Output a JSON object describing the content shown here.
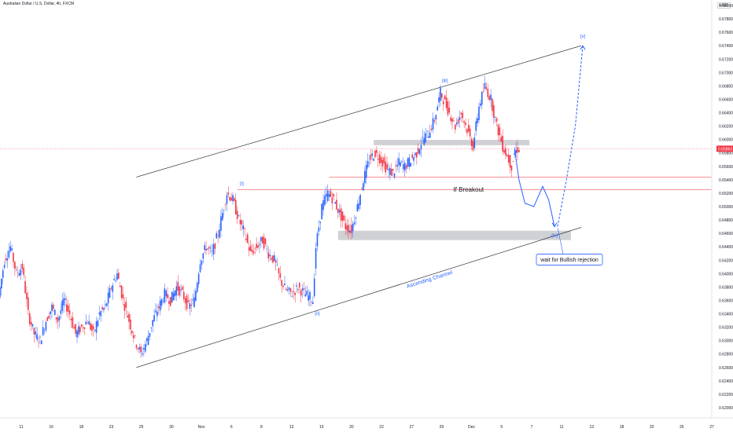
{
  "header": {
    "title": "Australian Dollar / U.S. Dollar, 4h, FXCM",
    "currency": "USD"
  },
  "chart_data": {
    "type": "candlestick",
    "title": "Australian Dollar / U.S. Dollar, 4h, FXCM",
    "y_axis": {
      "unit": "USD",
      "range": [
        0.62,
        0.68
      ],
      "ticks": [
        "0.68000",
        "0.67800",
        "0.67600",
        "0.67400",
        "0.67200",
        "0.67000",
        "0.66800",
        "0.66600",
        "0.66400",
        "0.66200",
        "0.66000",
        "0.65800",
        "0.65600",
        "0.65400",
        "0.65200",
        "0.65000",
        "0.64800",
        "0.64600",
        "0.64400",
        "0.64200",
        "0.64000",
        "0.63800",
        "0.63600",
        "0.63400",
        "0.63200",
        "0.63000",
        "0.62800",
        "0.62600",
        "0.62400",
        "0.62200",
        "0.62000"
      ],
      "current_price": "0.65863",
      "current_price_value": 0.65863
    },
    "x_axis": {
      "ticks": [
        "11",
        "16",
        "18",
        "23",
        "25",
        "30",
        "Nov",
        "6",
        "8",
        "13",
        "15",
        "20",
        "22",
        "27",
        "29",
        "Dec",
        "5",
        "7",
        "11",
        "13",
        "18",
        "20",
        "25",
        "27"
      ]
    },
    "price_path": [
      {
        "i": 0,
        "v": 0.6365
      },
      {
        "i": 4,
        "v": 0.642
      },
      {
        "i": 8,
        "v": 0.644
      },
      {
        "i": 12,
        "v": 0.64
      },
      {
        "i": 16,
        "v": 0.641
      },
      {
        "i": 20,
        "v": 0.634
      },
      {
        "i": 24,
        "v": 0.631
      },
      {
        "i": 28,
        "v": 0.63
      },
      {
        "i": 32,
        "v": 0.633
      },
      {
        "i": 36,
        "v": 0.635
      },
      {
        "i": 40,
        "v": 0.633
      },
      {
        "i": 44,
        "v": 0.636
      },
      {
        "i": 48,
        "v": 0.634
      },
      {
        "i": 52,
        "v": 0.631
      },
      {
        "i": 56,
        "v": 0.632
      },
      {
        "i": 60,
        "v": 0.633
      },
      {
        "i": 64,
        "v": 0.631
      },
      {
        "i": 68,
        "v": 0.634
      },
      {
        "i": 72,
        "v": 0.635
      },
      {
        "i": 76,
        "v": 0.638
      },
      {
        "i": 80,
        "v": 0.64
      },
      {
        "i": 84,
        "v": 0.636
      },
      {
        "i": 88,
        "v": 0.633
      },
      {
        "i": 92,
        "v": 0.63
      },
      {
        "i": 96,
        "v": 0.628
      },
      {
        "i": 100,
        "v": 0.63
      },
      {
        "i": 104,
        "v": 0.633
      },
      {
        "i": 108,
        "v": 0.635
      },
      {
        "i": 112,
        "v": 0.637
      },
      {
        "i": 116,
        "v": 0.636
      },
      {
        "i": 120,
        "v": 0.638
      },
      {
        "i": 124,
        "v": 0.637
      },
      {
        "i": 128,
        "v": 0.635
      },
      {
        "i": 132,
        "v": 0.636
      },
      {
        "i": 136,
        "v": 0.642
      },
      {
        "i": 140,
        "v": 0.644
      },
      {
        "i": 144,
        "v": 0.643
      },
      {
        "i": 148,
        "v": 0.646
      },
      {
        "i": 152,
        "v": 0.65
      },
      {
        "i": 154,
        "v": 0.652
      },
      {
        "i": 158,
        "v": 0.651
      },
      {
        "i": 162,
        "v": 0.648
      },
      {
        "i": 166,
        "v": 0.646
      },
      {
        "i": 170,
        "v": 0.643
      },
      {
        "i": 174,
        "v": 0.644
      },
      {
        "i": 178,
        "v": 0.645
      },
      {
        "i": 182,
        "v": 0.643
      },
      {
        "i": 186,
        "v": 0.642
      },
      {
        "i": 190,
        "v": 0.639
      },
      {
        "i": 194,
        "v": 0.6375
      },
      {
        "i": 198,
        "v": 0.637
      },
      {
        "i": 202,
        "v": 0.638
      },
      {
        "i": 206,
        "v": 0.637
      },
      {
        "i": 210,
        "v": 0.6365
      },
      {
        "i": 212,
        "v": 0.636
      },
      {
        "i": 214,
        "v": 0.644
      },
      {
        "i": 218,
        "v": 0.65
      },
      {
        "i": 222,
        "v": 0.652
      },
      {
        "i": 226,
        "v": 0.651
      },
      {
        "i": 230,
        "v": 0.649
      },
      {
        "i": 234,
        "v": 0.647
      },
      {
        "i": 238,
        "v": 0.6465
      },
      {
        "i": 242,
        "v": 0.65
      },
      {
        "i": 246,
        "v": 0.654
      },
      {
        "i": 250,
        "v": 0.657
      },
      {
        "i": 254,
        "v": 0.658
      },
      {
        "i": 258,
        "v": 0.657
      },
      {
        "i": 262,
        "v": 0.6555
      },
      {
        "i": 266,
        "v": 0.655
      },
      {
        "i": 270,
        "v": 0.6565
      },
      {
        "i": 274,
        "v": 0.656
      },
      {
        "i": 278,
        "v": 0.657
      },
      {
        "i": 282,
        "v": 0.658
      },
      {
        "i": 286,
        "v": 0.66
      },
      {
        "i": 290,
        "v": 0.661
      },
      {
        "i": 294,
        "v": 0.663
      },
      {
        "i": 298,
        "v": 0.667
      },
      {
        "i": 300,
        "v": 0.666
      },
      {
        "i": 304,
        "v": 0.664
      },
      {
        "i": 308,
        "v": 0.662
      },
      {
        "i": 312,
        "v": 0.664
      },
      {
        "i": 316,
        "v": 0.6615
      },
      {
        "i": 320,
        "v": 0.659
      },
      {
        "i": 324,
        "v": 0.665
      },
      {
        "i": 328,
        "v": 0.668
      },
      {
        "i": 332,
        "v": 0.666
      },
      {
        "i": 336,
        "v": 0.662
      },
      {
        "i": 340,
        "v": 0.659
      },
      {
        "i": 344,
        "v": 0.657
      },
      {
        "i": 346,
        "v": 0.656
      },
      {
        "i": 348,
        "v": 0.658
      },
      {
        "i": 350,
        "v": 0.6586
      }
    ],
    "channel": {
      "label": "Ascending Channel",
      "upper": [
        {
          "i": 92,
          "v": 0.6544
        },
        {
          "i": 392,
          "v": 0.674
        }
      ],
      "lower": [
        {
          "i": 92,
          "v": 0.626
        },
        {
          "i": 392,
          "v": 0.6469
        }
      ]
    },
    "zones": [
      {
        "i0": 252,
        "i1": 357,
        "v_top": 0.65995,
        "v_bottom": 0.65915
      },
      {
        "i0": 228,
        "i1": 385,
        "v_top": 0.6464,
        "v_bottom": 0.645
      }
    ],
    "levels": [
      {
        "v": 0.6544,
        "i0": 222,
        "i1": 480
      },
      {
        "v": 0.6525,
        "i0": 160,
        "i1": 480
      }
    ],
    "wave_labels": [
      {
        "text": "(i)",
        "i": 163,
        "v": 0.6532
      },
      {
        "text": "(ii)",
        "i": 214,
        "v": 0.6338
      },
      {
        "text": "(iii)",
        "i": 300,
        "v": 0.6686
      },
      {
        "text": "(iv)",
        "i": 374,
        "v": 0.6455
      },
      {
        "text": "(v)",
        "i": 393,
        "v": 0.6752
      }
    ],
    "projection": [
      {
        "i": 347,
        "v": 0.6586
      },
      {
        "i": 350,
        "v": 0.654
      },
      {
        "i": 354,
        "v": 0.6505
      },
      {
        "i": 360,
        "v": 0.65
      },
      {
        "i": 366,
        "v": 0.653
      },
      {
        "i": 370,
        "v": 0.651
      },
      {
        "i": 374,
        "v": 0.647
      }
    ],
    "projection_dashed": [
      {
        "i": 376,
        "v": 0.647
      },
      {
        "i": 382,
        "v": 0.654
      },
      {
        "i": 388,
        "v": 0.662
      },
      {
        "i": 393,
        "v": 0.674
      }
    ],
    "annotations": [
      {
        "text": "If Breakout",
        "i": 316,
        "v": 0.6525
      },
      {
        "text": "wait for Bullish rejection",
        "i": 384,
        "v": 0.6421
      },
      {
        "text": "Ascending Channel",
        "i": 290,
        "v": 0.6389
      }
    ],
    "colors": {
      "up": "#2962ff",
      "down": "#f23645",
      "level": "#f7525f",
      "zone": "#c8c9cc",
      "line": "#131722"
    }
  }
}
